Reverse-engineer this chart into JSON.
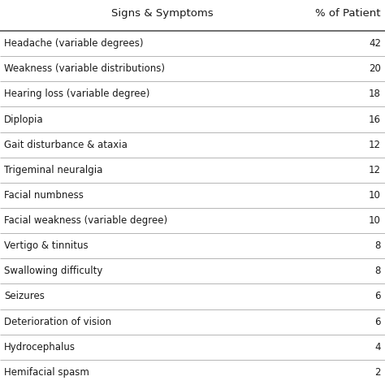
{
  "col1_header": "Signs & Symptoms",
  "col2_header": "% of Patient",
  "rows": [
    {
      "symptom": "Headache (variable degrees)",
      "value": "42"
    },
    {
      "symptom": "Weakness (variable distributions)",
      "value": "20"
    },
    {
      "symptom": "Hearing loss (variable degree)",
      "value": "18"
    },
    {
      "symptom": "Diplopia",
      "value": "16"
    },
    {
      "symptom": "Gait disturbance & ataxia",
      "value": "12"
    },
    {
      "symptom": "Trigeminal neuralgia",
      "value": "12"
    },
    {
      "symptom": "Facial numbness",
      "value": "10"
    },
    {
      "symptom": "Facial weakness (variable degree)",
      "value": "10"
    },
    {
      "symptom": "Vertigo & tinnitus",
      "value": "8"
    },
    {
      "symptom": "Swallowing difficulty",
      "value": "8"
    },
    {
      "symptom": "Seizures",
      "value": "6"
    },
    {
      "symptom": "Deterioration of vision",
      "value": "6"
    },
    {
      "symptom": "Hydrocephalus",
      "value": "4"
    },
    {
      "symptom": "Hemifacial spasm",
      "value": "2"
    }
  ],
  "bg_color": "#ffffff",
  "text_color": "#1a1a1a",
  "header_line_color": "#555555",
  "row_line_color": "#aaaaaa",
  "font_size": 8.5,
  "header_font_size": 9.5,
  "fig_width": 4.74,
  "fig_height": 4.74,
  "dpi": 100
}
